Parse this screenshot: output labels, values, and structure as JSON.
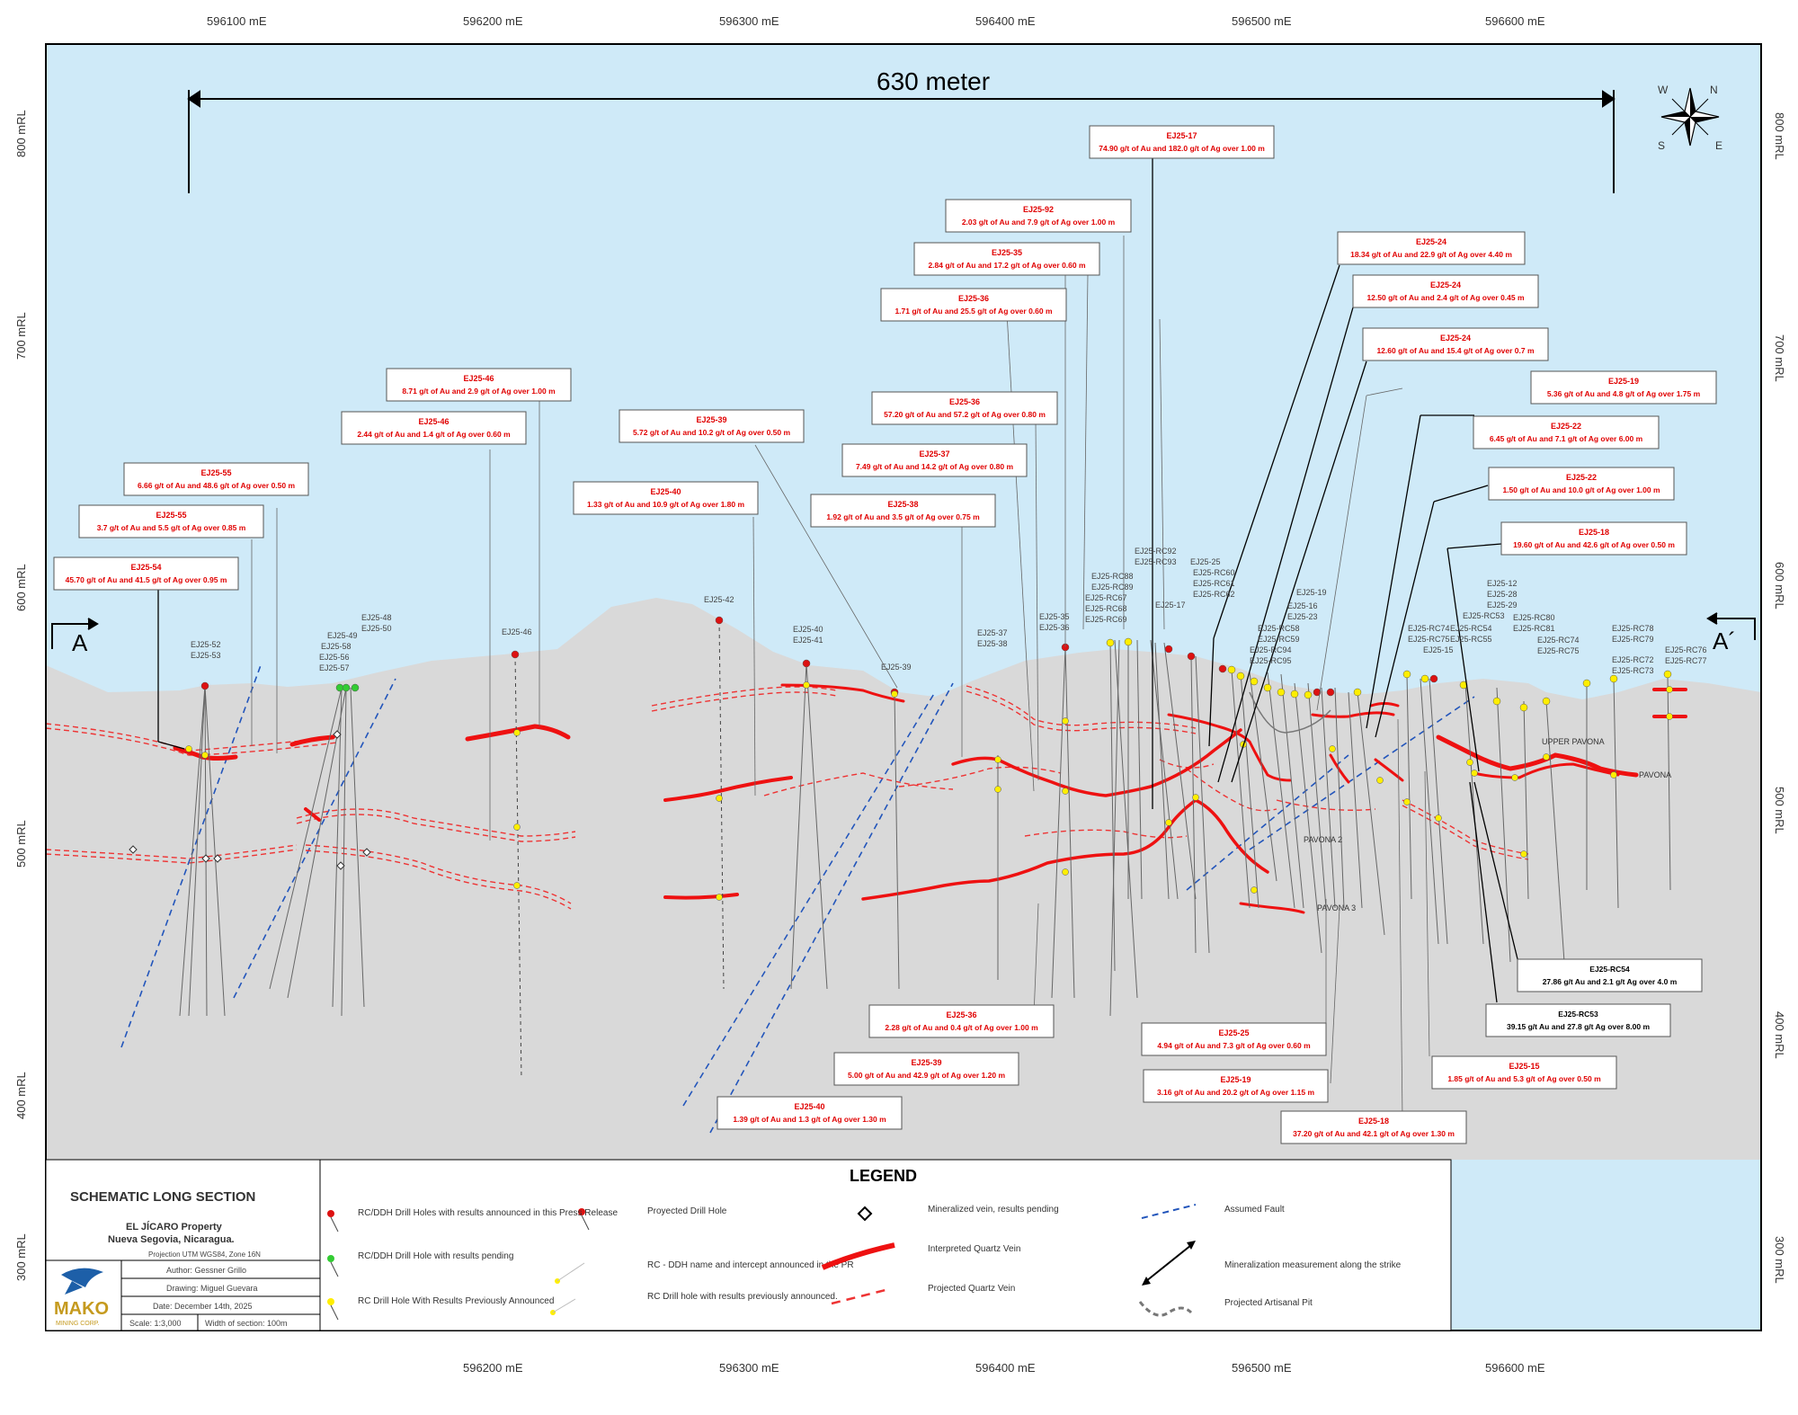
{
  "x_ticks": [
    "596100 mE",
    "596200 mE",
    "596300 mE",
    "596400 mE",
    "596500 mE",
    "596600 mE"
  ],
  "y_ticks": [
    "800 mRL",
    "700 mRL",
    "600 mRL",
    "500 mRL",
    "400 mRL",
    "300 mRL"
  ],
  "scale_label": "630 meter",
  "section_left": "A",
  "section_right": "A´",
  "intercepts": [
    {
      "hole": "EJ25-17",
      "text": "74.90 g/t of Au and 182.0 g/t of Ag over 1.00 m"
    },
    {
      "hole": "EJ25-92",
      "text": "2.03 g/t of Au and 7.9 g/t of Ag over 1.00 m"
    },
    {
      "hole": "EJ25-35",
      "text": "2.84 g/t of Au and 17.2 g/t of Ag over 0.60 m"
    },
    {
      "hole": "EJ25-36",
      "text": "1.71 g/t of Au and 25.5 g/t of Ag over 0.60 m"
    },
    {
      "hole": "EJ25-24",
      "text": "18.34 g/t of Au and 22.9 g/t of Ag over 4.40 m"
    },
    {
      "hole": "EJ25-24",
      "text": "12.50 g/t of Au and 2.4 g/t of Ag over 0.45 m"
    },
    {
      "hole": "EJ25-24",
      "text": "12.60 g/t of Au and 15.4 g/t of Ag over 0.7 m"
    },
    {
      "hole": "EJ25-19",
      "text": "5.36 g/t of Au and 4.8 g/t of Ag over 1.75 m"
    },
    {
      "hole": "EJ25-22",
      "text": "6.45 g/t of Au and 7.1 g/t of Ag over 6.00 m"
    },
    {
      "hole": "EJ25-22",
      "text": "1.50 g/t of Au and 10.0 g/t of Ag over 1.00 m"
    },
    {
      "hole": "EJ25-18",
      "text": "19.60 g/t of Au and 42.6 g/t of Ag over 0.50 m"
    },
    {
      "hole": "EJ25-46",
      "text": "8.71 g/t of Au and 2.9 g/t of Ag over 1.00 m"
    },
    {
      "hole": "EJ25-46",
      "text": "2.44 g/t of Au and 1.4 g/t of Ag over 0.60 m"
    },
    {
      "hole": "EJ25-39",
      "text": "5.72 g/t of Au and 10.2 g/t of Ag over 0.50 m"
    },
    {
      "hole": "EJ25-40",
      "text": "1.33 g/t of Au and 10.9 g/t of Ag over 1.80 m"
    },
    {
      "hole": "EJ25-36",
      "text": "57.20 g/t of Au and 57.2 g/t of Ag over 0.80 m"
    },
    {
      "hole": "EJ25-37",
      "text": "7.49 g/t of Au and 14.2 g/t of Ag over 0.80 m"
    },
    {
      "hole": "EJ25-38",
      "text": "1.92 g/t of Au and 3.5 g/t of Ag over 0.75 m"
    },
    {
      "hole": "EJ25-55",
      "text": "6.66 g/t of Au and 48.6 g/t of Ag over 0.50 m"
    },
    {
      "hole": "EJ25-55",
      "text": "3.7 g/t of Au and 5.5 g/t of Ag over 0.85 m"
    },
    {
      "hole": "EJ25-54",
      "text": "45.70 g/t of Au and 41.5 g/t of Ag over 0.95 m"
    },
    {
      "hole": "EJ25-36",
      "text": "2.28 g/t of Au and 0.4 g/t of Ag over 1.00 m"
    },
    {
      "hole": "EJ25-39",
      "text": "5.00 g/t of Au and 42.9 g/t of Ag over 1.20 m"
    },
    {
      "hole": "EJ25-40",
      "text": "1.39 g/t of Au and 1.3 g/t of Ag over 1.30 m"
    },
    {
      "hole": "EJ25-25",
      "text": "4.94 g/t of Au and 7.3 g/t of Ag over 0.60 m"
    },
    {
      "hole": "EJ25-19",
      "text": "3.16 g/t of Au and 20.2 g/t of Ag over 1.15 m"
    },
    {
      "hole": "EJ25-18",
      "text": "37.20 g/t of Au and 42.1 g/t of Ag over 1.30 m"
    },
    {
      "hole": "EJ25-15",
      "text": "1.85 g/t of Au and 5.3 g/t of Ag over 0.50 m"
    },
    {
      "hole": "EJ25-RC53",
      "text": "39.15 g/t Au and 27.8 g/t Ag over 8.00 m"
    },
    {
      "hole": "EJ25-RC54",
      "text": "27.86 g/t Au and 2.1 g/t Ag over 4.0 m"
    }
  ],
  "hole_labels": [
    "EJ25-52",
    "EJ25-53",
    "EJ25-48",
    "EJ25-50",
    "EJ25-49",
    "EJ25-58",
    "EJ25-56",
    "EJ25-57",
    "EJ25-46",
    "EJ25-42",
    "EJ25-40",
    "EJ25-41",
    "EJ25-39",
    "EJ25-37",
    "EJ25-38",
    "EJ25-35",
    "EJ25-36",
    "EJ25-RC88",
    "EJ25-RC89",
    "EJ25-RC67",
    "EJ25-RC68",
    "EJ25-RC69",
    "EJ25-RC92",
    "EJ25-RC93",
    "EJ25-17",
    "EJ25-25",
    "EJ25-RC60",
    "EJ25-RC61",
    "EJ25-RC62",
    "EJ25-RC58",
    "EJ25-RC59",
    "EJ25-RC94",
    "EJ25-RC95",
    "EJ25-19",
    "EJ25-16",
    "EJ25-23",
    "EJ25-RC74",
    "EJ25-RC75",
    "EJ25-15",
    "EJ25-RC54",
    "EJ25-RC55",
    "EJ25-12",
    "EJ25-28",
    "EJ25-29",
    "EJ25-RC53",
    "EJ25-RC80",
    "EJ25-RC81",
    "EJ25-RC74",
    "EJ25-RC75",
    "EJ25-RC78",
    "EJ25-RC79",
    "EJ25-RC72",
    "EJ25-RC73",
    "EJ25-RC76",
    "EJ25-RC77"
  ],
  "vein_labels": [
    "UPPER PAVONA",
    "PAVONA",
    "PAVONA 2",
    "PAVONA 3"
  ],
  "compass": [
    "N",
    "E",
    "S",
    "W"
  ],
  "title_block": {
    "title": "SCHEMATIC LONG  SECTION",
    "property": "EL JÍCARO Property",
    "location": "Nueva Segovia, Nicaragua.",
    "projection": "Projection UTM WGS84, Zone 16N",
    "author": "Author: Gessner Grillo",
    "drawing": "Drawing: Miguel Guevara",
    "date": "Date: December 14th, 2025",
    "scale": "Scale: 1:3,000",
    "width": "Width of section: 100m",
    "logo": "MAKO",
    "logo_sub": "MINING CORP."
  },
  "legend": {
    "title": "LEGEND",
    "items": [
      "RC/DDH Drill Holes with results announced in this Press Release",
      "RC/DDH Drill Hole with results pending",
      "RC Drill Hole With Results Previously Announced",
      "Proyected Drill Hole",
      "RC - DDH name and intercept announced in the PR",
      "RC Drill hole with results previously announced.",
      "Mineralized vein, results pending",
      "Interpreted Quartz Vein",
      "Projected Quartz Vein",
      "Assumed  Fault",
      "Mineralization measurement along the strike",
      "Projected Artisanal Pit"
    ]
  },
  "colors": {
    "sky": "#cfeaf8",
    "ground": "#d9d9d9",
    "vein": "#ee1111",
    "fault": "#2255bb",
    "hole_new": "#dd1111",
    "hole_pending": "#33cc33",
    "hole_prev": "#ffee00"
  }
}
